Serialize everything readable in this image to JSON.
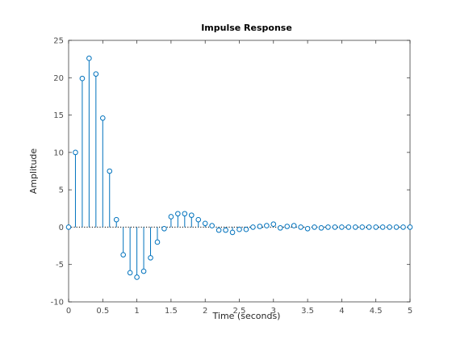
{
  "chart_data": {
    "type": "stem",
    "title": "Impulse Response",
    "xlabel": "Time (seconds)",
    "ylabel": "Amplitude",
    "xlim": [
      0,
      5
    ],
    "ylim": [
      -10,
      25
    ],
    "xticks": [
      0,
      0.5,
      1,
      1.5,
      2,
      2.5,
      3,
      3.5,
      4,
      4.5,
      5
    ],
    "xtick_labels": [
      "0",
      "0.5",
      "1",
      "1.5",
      "2",
      "2.5",
      "3",
      "3.5",
      "4",
      "4.5",
      "5"
    ],
    "yticks": [
      -10,
      -5,
      0,
      5,
      10,
      15,
      20,
      25
    ],
    "ytick_labels": [
      "-10",
      "-5",
      "0",
      "5",
      "10",
      "15",
      "20",
      "25"
    ],
    "grid": false,
    "marker": "circle",
    "series": [
      {
        "x": [
          0,
          0.1,
          0.2,
          0.3,
          0.4,
          0.5,
          0.6,
          0.7,
          0.8,
          0.9,
          1.0,
          1.1,
          1.2,
          1.3,
          1.4,
          1.5,
          1.6,
          1.7,
          1.8,
          1.9,
          2.0,
          2.1,
          2.2,
          2.3,
          2.4,
          2.5,
          2.6,
          2.7,
          2.8,
          2.9,
          3.0,
          3.1,
          3.2,
          3.3,
          3.4,
          3.5,
          3.6,
          3.7,
          3.8,
          3.9,
          4.0,
          4.1,
          4.2,
          4.3,
          4.4,
          4.5,
          4.6,
          4.7,
          4.8,
          4.9,
          5.0
        ],
        "y": [
          0,
          10.0,
          19.9,
          22.6,
          20.5,
          14.6,
          7.5,
          1.0,
          -3.7,
          -6.1,
          -6.7,
          -5.9,
          -4.1,
          -2.0,
          -0.2,
          1.4,
          1.8,
          1.8,
          1.6,
          1.0,
          0.5,
          0.2,
          -0.4,
          -0.4,
          -0.7,
          -0.3,
          -0.3,
          0.0,
          0.1,
          0.2,
          0.4,
          -0.1,
          0.1,
          0.2,
          0.0,
          -0.2,
          0.0,
          -0.1,
          0.0,
          0.0,
          0.0,
          0.0,
          0.0,
          0.0,
          0.0,
          0.0,
          0.0,
          0.0,
          0.0,
          0.0,
          0.0
        ]
      }
    ]
  },
  "colors": {
    "stem": "#0072bd",
    "axes": "#262626",
    "baseline": "#000000"
  }
}
